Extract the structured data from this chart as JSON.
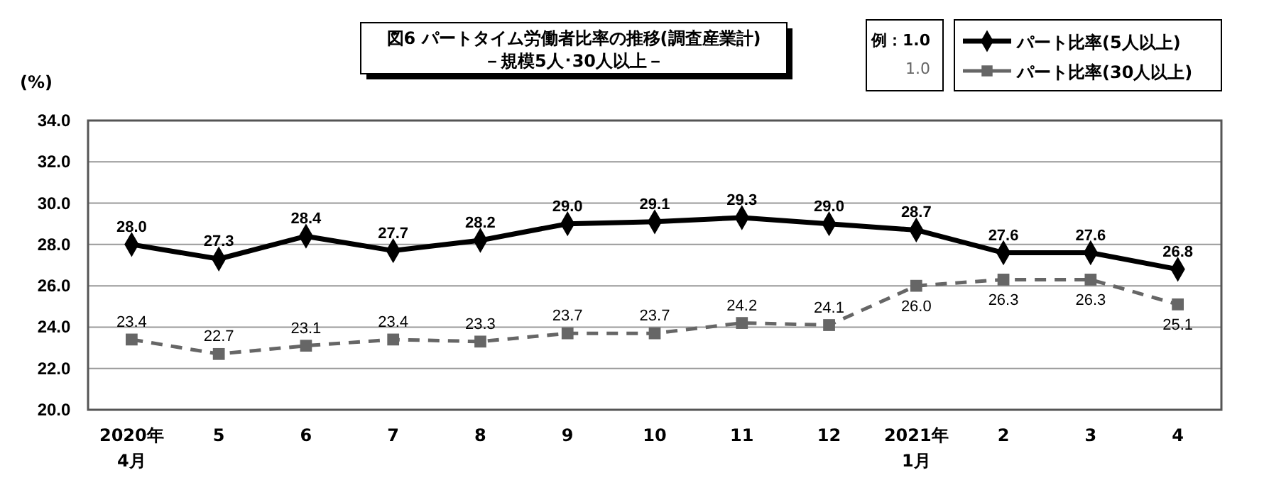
{
  "chart_data": {
    "type": "line",
    "title": "図6  パートタイム労働者比率の推移(調査産業計)",
    "subtitle": "－規模5人･30人以上－",
    "ylabel": "(%)",
    "categories": [
      "2020年\n4月",
      "5",
      "6",
      "7",
      "8",
      "9",
      "10",
      "11",
      "12",
      "2021年\n1月",
      "2",
      "3",
      "4"
    ],
    "series": [
      {
        "name": "パート比率(5人以上)",
        "color": "#000000",
        "marker": "diamond",
        "line_style": "solid",
        "values": [
          28.0,
          27.3,
          28.4,
          27.7,
          28.2,
          29.0,
          29.1,
          29.3,
          29.0,
          28.7,
          27.6,
          27.6,
          26.8
        ],
        "value_labels": [
          "28.0",
          "27.3",
          "28.4",
          "27.7",
          "28.2",
          "29.0",
          "29.1",
          "29.3",
          "29.0",
          "28.7",
          "27.6",
          "27.6",
          "26.8"
        ]
      },
      {
        "name": "パート比率(30人以上)",
        "color": "#666666",
        "marker": "square",
        "line_style": "dashed",
        "values": [
          23.4,
          22.7,
          23.1,
          23.4,
          23.3,
          23.7,
          23.7,
          24.2,
          24.1,
          26.0,
          26.3,
          26.3,
          25.1
        ],
        "value_labels": [
          "23.4",
          "22.7",
          "23.1",
          "23.4",
          "23.3",
          "23.7",
          "23.7",
          "24.2",
          "24.1",
          "26.0",
          "26.3",
          "26.3",
          "25.1"
        ]
      }
    ],
    "ylim": [
      20,
      34
    ],
    "yticks": [
      {
        "value": 20,
        "label": "20.0"
      },
      {
        "value": 22,
        "label": "22.0"
      },
      {
        "value": 24,
        "label": "24.0"
      },
      {
        "value": 26,
        "label": "26.0"
      },
      {
        "value": 28,
        "label": "28.0"
      },
      {
        "value": 30,
        "label": "30.0"
      },
      {
        "value": 32,
        "label": "32.0"
      },
      {
        "value": 34,
        "label": "34.0"
      }
    ],
    "grid": "y",
    "legend": "top right",
    "annotations": [
      "例：1.0",
      "1.0"
    ]
  }
}
